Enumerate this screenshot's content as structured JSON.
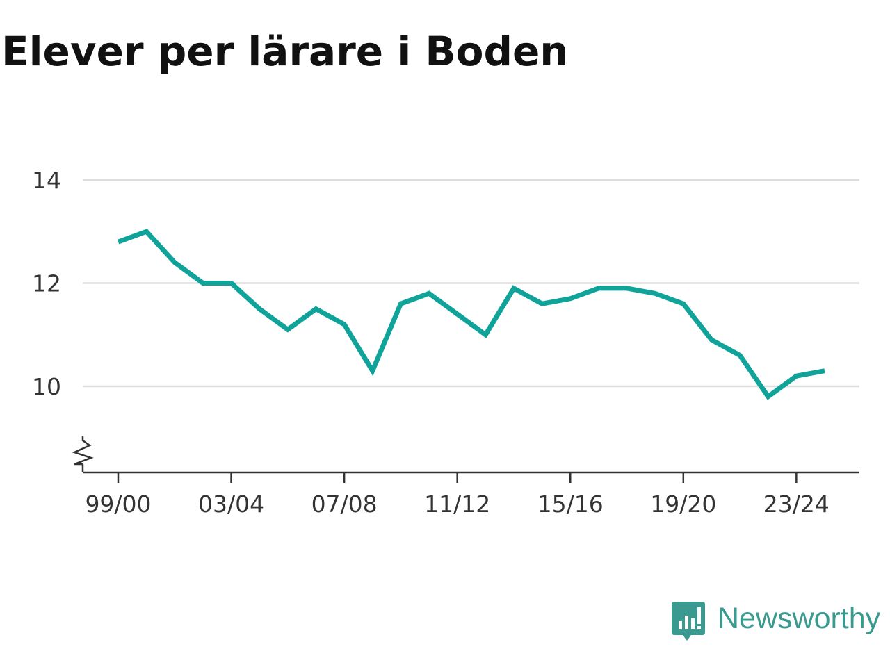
{
  "title": "Elever per lärare i Boden",
  "brand": {
    "name": "Newsworthy",
    "logo_icon": "bar-chart-speech-bubble-icon",
    "color": "#3a9a8f"
  },
  "colors": {
    "line": "#0fa39a",
    "grid": "#dddddd",
    "axis": "#333333",
    "text": "#333333",
    "title": "#111111"
  },
  "chart_data": {
    "type": "line",
    "title": "Elever per lärare i Boden",
    "xlabel": "",
    "ylabel": "",
    "x": [
      "99/00",
      "00/01",
      "01/02",
      "02/03",
      "03/04",
      "04/05",
      "05/06",
      "06/07",
      "07/08",
      "08/09",
      "09/10",
      "10/11",
      "11/12",
      "12/13",
      "13/14",
      "14/15",
      "15/16",
      "16/17",
      "17/18",
      "18/19",
      "19/20",
      "20/21",
      "21/22",
      "22/23",
      "23/24",
      "24/25"
    ],
    "x_tick_labels": [
      "99/00",
      "03/04",
      "07/08",
      "11/12",
      "15/16",
      "19/20",
      "23/24"
    ],
    "y_ticks": [
      10,
      12,
      14
    ],
    "y_tick_labels": [
      "10",
      "12",
      "14"
    ],
    "ylim": [
      8.3,
      14
    ],
    "y_axis_break": true,
    "grid": true,
    "legend": "none",
    "series": [
      {
        "values": [
          12.8,
          13.0,
          12.4,
          12.0,
          12.0,
          11.5,
          11.1,
          11.5,
          11.2,
          10.3,
          11.6,
          11.8,
          11.4,
          11.0,
          11.9,
          11.6,
          11.7,
          11.9,
          11.9,
          11.8,
          11.6,
          10.9,
          10.6,
          9.8,
          10.2,
          10.3
        ]
      }
    ]
  }
}
